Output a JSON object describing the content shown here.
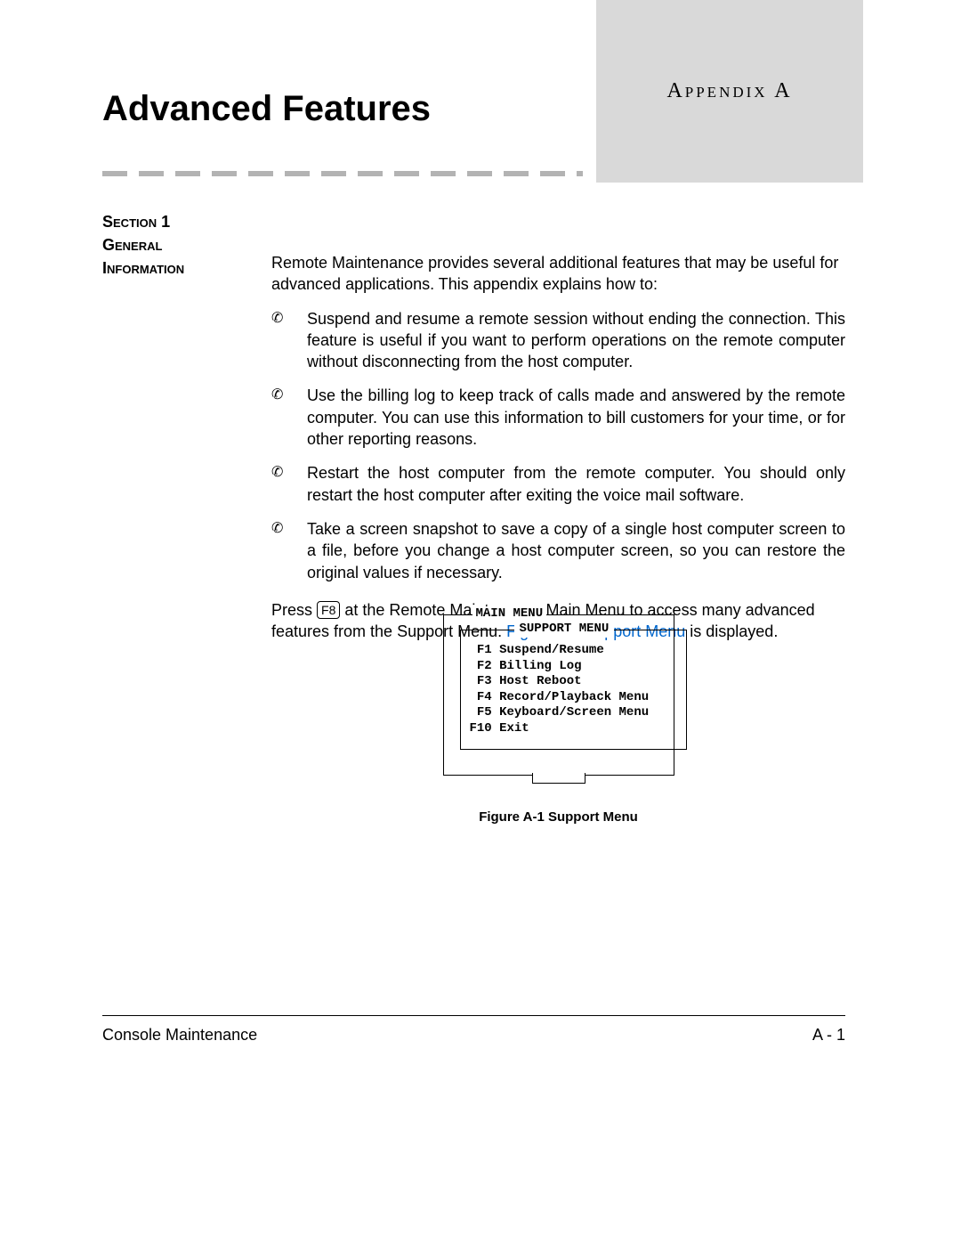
{
  "header": {
    "title": "Advanced Features",
    "appendix_label": "Appendix A"
  },
  "section_label": {
    "line1": "Section 1",
    "line2": "General",
    "line3": "Information"
  },
  "intro": "Remote Maintenance provides several additional features that may be useful for advanced applications.  This appendix explains how to:",
  "bullets": [
    "Suspend and resume a remote session without ending the connection. This feature is useful if you want to perform operations on the remote computer without disconnecting from the host computer.",
    "Use the billing log to keep track of calls made and answered by the remote computer.  You can use this information to bill customers for your time, or for other reporting reasons.",
    "Restart the host computer from the remote computer. You should only restart the host computer after exiting the voice mail software.",
    "Take a screen snapshot to save a copy of a single host computer screen to a file, before you change a host computer screen, so you can restore the original values if necessary."
  ],
  "press_para": {
    "before": "Press ",
    "key": "F8",
    "mid": " at the Remote Maintenance Main Menu to access many advanced features from the Support Menu.  ",
    "xref": "Figure A-1 Support Menu",
    "after": " is displayed."
  },
  "menu": {
    "outer_label": "MAIN MENU",
    "inner_label": "SUPPORT MENU",
    "items": [
      " F1 Suspend/Resume",
      " F2 Billing Log",
      " F3 Host Reboot",
      " F4 Record/Playback Menu",
      " F5 Keyboard/Screen Menu",
      "F10 Exit"
    ]
  },
  "figure_caption": "Figure A-1  Support Menu",
  "footer": {
    "left": "Console Maintenance",
    "right": "A - 1"
  },
  "colors": {
    "tab_bg": "#d9d9d9",
    "dash": "#b3b3b3",
    "link": "#0066cc",
    "text": "#000000",
    "page_bg": "#ffffff"
  },
  "bullet_glyph": "✆"
}
